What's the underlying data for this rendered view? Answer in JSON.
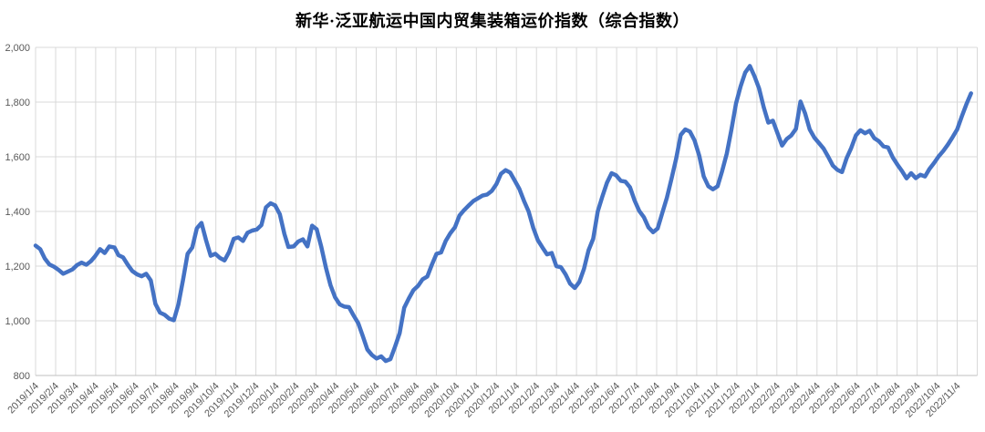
{
  "title": "新华·泛亚航运中国内贸集装箱运价指数（综合指数）",
  "colors": {
    "line": "#4472C4",
    "grid": "#D9D9D9",
    "axis": "#BFBFBF",
    "tick_text": "#595959",
    "title_text": "#000000",
    "background": "#FFFFFF"
  },
  "y_axis": {
    "min": 800,
    "max": 2000,
    "step": 200,
    "tick_labels": [
      "800",
      "1,000",
      "1,200",
      "1,400",
      "1,600",
      "1,800",
      "2,000"
    ]
  },
  "x_axis": {
    "tick_labels": [
      "2019/1/4",
      "2019/2/4",
      "2019/3/4",
      "2019/4/4",
      "2019/5/4",
      "2019/6/4",
      "2019/7/4",
      "2019/8/4",
      "2019/9/4",
      "2019/10/4",
      "2019/11/4",
      "2019/12/4",
      "2020/1/4",
      "2020/2/4",
      "2020/3/4",
      "2020/4/4",
      "2020/5/4",
      "2020/6/4",
      "2020/7/4",
      "2020/8/4",
      "2020/9/4",
      "2020/10/4",
      "2020/11/4",
      "2020/12/4",
      "2021/1/4",
      "2021/2/4",
      "2021/3/4",
      "2021/4/4",
      "2021/5/4",
      "2021/6/4",
      "2021/7/4",
      "2021/8/4",
      "2021/9/4",
      "2021/10/4",
      "2021/11/4",
      "2021/12/4",
      "2022/1/4",
      "2022/2/4",
      "2022/3/4",
      "2022/4/4",
      "2022/5/4",
      "2022/6/4",
      "2022/7/4",
      "2022/8/4",
      "2022/9/4",
      "2022/10/4",
      "2022/11/4"
    ]
  },
  "chart_data": {
    "type": "line",
    "title": "新华·泛亚航运中国内贸集装箱运价指数（综合指数）",
    "xlabel": "",
    "ylabel": "",
    "ylim": [
      800,
      2000
    ],
    "grid": true,
    "legend": false,
    "line_color": "#4472C4",
    "points": [
      [
        "2019/1/4",
        1275
      ],
      [
        "2019/1/11",
        1262
      ],
      [
        "2019/1/18",
        1228
      ],
      [
        "2019/1/25",
        1206
      ],
      [
        "2019/2/1",
        1198
      ],
      [
        "2019/2/8",
        1186
      ],
      [
        "2019/2/15",
        1172
      ],
      [
        "2019/2/22",
        1180
      ],
      [
        "2019/3/1",
        1188
      ],
      [
        "2019/3/8",
        1204
      ],
      [
        "2019/3/15",
        1213
      ],
      [
        "2019/3/22",
        1205
      ],
      [
        "2019/3/29",
        1218
      ],
      [
        "2019/4/4",
        1235
      ],
      [
        "2019/4/12",
        1262
      ],
      [
        "2019/4/19",
        1248
      ],
      [
        "2019/4/26",
        1272
      ],
      [
        "2019/5/4",
        1268
      ],
      [
        "2019/5/10",
        1240
      ],
      [
        "2019/5/17",
        1232
      ],
      [
        "2019/5/24",
        1205
      ],
      [
        "2019/5/31",
        1182
      ],
      [
        "2019/6/7",
        1170
      ],
      [
        "2019/6/14",
        1163
      ],
      [
        "2019/6/21",
        1172
      ],
      [
        "2019/6/28",
        1148
      ],
      [
        "2019/7/5",
        1062
      ],
      [
        "2019/7/12",
        1030
      ],
      [
        "2019/7/19",
        1022
      ],
      [
        "2019/7/26",
        1008
      ],
      [
        "2019/8/2",
        1002
      ],
      [
        "2019/8/9",
        1060
      ],
      [
        "2019/8/16",
        1150
      ],
      [
        "2019/8/23",
        1245
      ],
      [
        "2019/8/30",
        1268
      ],
      [
        "2019/9/6",
        1338
      ],
      [
        "2019/9/13",
        1358
      ],
      [
        "2019/9/20",
        1295
      ],
      [
        "2019/9/27",
        1238
      ],
      [
        "2019/10/4",
        1245
      ],
      [
        "2019/10/11",
        1230
      ],
      [
        "2019/10/18",
        1221
      ],
      [
        "2019/10/25",
        1252
      ],
      [
        "2019/11/1",
        1300
      ],
      [
        "2019/11/8",
        1305
      ],
      [
        "2019/11/15",
        1292
      ],
      [
        "2019/11/22",
        1322
      ],
      [
        "2019/11/29",
        1330
      ],
      [
        "2019/12/6",
        1334
      ],
      [
        "2019/12/13",
        1350
      ],
      [
        "2019/12/20",
        1415
      ],
      [
        "2019/12/27",
        1430
      ],
      [
        "2020/1/3",
        1422
      ],
      [
        "2020/1/10",
        1390
      ],
      [
        "2020/1/17",
        1318
      ],
      [
        "2020/1/23",
        1270
      ],
      [
        "2020/1/31",
        1272
      ],
      [
        "2020/2/7",
        1290
      ],
      [
        "2020/2/14",
        1298
      ],
      [
        "2020/2/21",
        1272
      ],
      [
        "2020/2/28",
        1348
      ],
      [
        "2020/3/6",
        1335
      ],
      [
        "2020/3/13",
        1270
      ],
      [
        "2020/3/20",
        1195
      ],
      [
        "2020/3/27",
        1130
      ],
      [
        "2020/4/3",
        1086
      ],
      [
        "2020/4/10",
        1060
      ],
      [
        "2020/4/17",
        1052
      ],
      [
        "2020/4/24",
        1050
      ],
      [
        "2020/5/1",
        1020
      ],
      [
        "2020/5/8",
        992
      ],
      [
        "2020/5/15",
        945
      ],
      [
        "2020/5/22",
        895
      ],
      [
        "2020/5/29",
        875
      ],
      [
        "2020/6/5",
        862
      ],
      [
        "2020/6/12",
        870
      ],
      [
        "2020/6/19",
        853
      ],
      [
        "2020/6/26",
        860
      ],
      [
        "2020/7/3",
        905
      ],
      [
        "2020/7/10",
        955
      ],
      [
        "2020/7/17",
        1048
      ],
      [
        "2020/7/24",
        1082
      ],
      [
        "2020/7/31",
        1112
      ],
      [
        "2020/8/7",
        1128
      ],
      [
        "2020/8/14",
        1152
      ],
      [
        "2020/8/21",
        1162
      ],
      [
        "2020/8/28",
        1205
      ],
      [
        "2020/9/4",
        1245
      ],
      [
        "2020/9/11",
        1250
      ],
      [
        "2020/9/18",
        1292
      ],
      [
        "2020/9/25",
        1320
      ],
      [
        "2020/10/2",
        1342
      ],
      [
        "2020/10/9",
        1385
      ],
      [
        "2020/10/16",
        1405
      ],
      [
        "2020/10/23",
        1422
      ],
      [
        "2020/10/30",
        1438
      ],
      [
        "2020/11/6",
        1448
      ],
      [
        "2020/11/13",
        1458
      ],
      [
        "2020/11/20",
        1462
      ],
      [
        "2020/11/27",
        1475
      ],
      [
        "2020/12/4",
        1500
      ],
      [
        "2020/12/11",
        1538
      ],
      [
        "2020/12/18",
        1551
      ],
      [
        "2020/12/25",
        1542
      ],
      [
        "2021/1/1",
        1512
      ],
      [
        "2021/1/8",
        1482
      ],
      [
        "2021/1/15",
        1438
      ],
      [
        "2021/1/22",
        1400
      ],
      [
        "2021/1/29",
        1340
      ],
      [
        "2021/2/5",
        1295
      ],
      [
        "2021/2/12",
        1268
      ],
      [
        "2021/2/19",
        1243
      ],
      [
        "2021/2/26",
        1248
      ],
      [
        "2021/3/5",
        1200
      ],
      [
        "2021/3/12",
        1196
      ],
      [
        "2021/3/19",
        1170
      ],
      [
        "2021/3/26",
        1136
      ],
      [
        "2021/4/2",
        1120
      ],
      [
        "2021/4/9",
        1142
      ],
      [
        "2021/4/16",
        1190
      ],
      [
        "2021/4/23",
        1258
      ],
      [
        "2021/4/30",
        1300
      ],
      [
        "2021/5/7",
        1400
      ],
      [
        "2021/5/14",
        1455
      ],
      [
        "2021/5/21",
        1505
      ],
      [
        "2021/5/28",
        1540
      ],
      [
        "2021/6/4",
        1532
      ],
      [
        "2021/6/11",
        1512
      ],
      [
        "2021/6/18",
        1509
      ],
      [
        "2021/6/25",
        1488
      ],
      [
        "2021/7/2",
        1440
      ],
      [
        "2021/7/9",
        1402
      ],
      [
        "2021/7/16",
        1379
      ],
      [
        "2021/7/23",
        1342
      ],
      [
        "2021/7/30",
        1324
      ],
      [
        "2021/8/6",
        1338
      ],
      [
        "2021/8/13",
        1395
      ],
      [
        "2021/8/20",
        1450
      ],
      [
        "2021/8/27",
        1520
      ],
      [
        "2021/9/3",
        1592
      ],
      [
        "2021/9/10",
        1680
      ],
      [
        "2021/9/17",
        1700
      ],
      [
        "2021/9/24",
        1692
      ],
      [
        "2021/10/1",
        1660
      ],
      [
        "2021/10/8",
        1605
      ],
      [
        "2021/10/15",
        1528
      ],
      [
        "2021/10/22",
        1492
      ],
      [
        "2021/10/29",
        1481
      ],
      [
        "2021/11/5",
        1492
      ],
      [
        "2021/11/12",
        1548
      ],
      [
        "2021/11/19",
        1612
      ],
      [
        "2021/11/26",
        1700
      ],
      [
        "2021/12/3",
        1795
      ],
      [
        "2021/12/10",
        1858
      ],
      [
        "2021/12/17",
        1908
      ],
      [
        "2021/12/24",
        1932
      ],
      [
        "2021/12/31",
        1895
      ],
      [
        "2022/1/7",
        1850
      ],
      [
        "2022/1/14",
        1782
      ],
      [
        "2022/1/21",
        1725
      ],
      [
        "2022/1/28",
        1732
      ],
      [
        "2022/2/4",
        1686
      ],
      [
        "2022/2/11",
        1641
      ],
      [
        "2022/2/18",
        1665
      ],
      [
        "2022/2/25",
        1678
      ],
      [
        "2022/3/4",
        1702
      ],
      [
        "2022/3/11",
        1802
      ],
      [
        "2022/3/18",
        1758
      ],
      [
        "2022/3/25",
        1700
      ],
      [
        "2022/4/1",
        1670
      ],
      [
        "2022/4/8",
        1650
      ],
      [
        "2022/4/15",
        1630
      ],
      [
        "2022/4/22",
        1600
      ],
      [
        "2022/4/29",
        1568
      ],
      [
        "2022/5/6",
        1552
      ],
      [
        "2022/5/13",
        1544
      ],
      [
        "2022/5/20",
        1595
      ],
      [
        "2022/5/27",
        1632
      ],
      [
        "2022/6/3",
        1678
      ],
      [
        "2022/6/10",
        1697
      ],
      [
        "2022/6/17",
        1686
      ],
      [
        "2022/6/24",
        1695
      ],
      [
        "2022/7/1",
        1668
      ],
      [
        "2022/7/8",
        1657
      ],
      [
        "2022/7/15",
        1638
      ],
      [
        "2022/7/22",
        1634
      ],
      [
        "2022/7/29",
        1598
      ],
      [
        "2022/8/5",
        1572
      ],
      [
        "2022/8/12",
        1548
      ],
      [
        "2022/8/19",
        1521
      ],
      [
        "2022/8/26",
        1540
      ],
      [
        "2022/9/2",
        1522
      ],
      [
        "2022/9/9",
        1534
      ],
      [
        "2022/9/16",
        1528
      ],
      [
        "2022/9/23",
        1556
      ],
      [
        "2022/9/30",
        1578
      ],
      [
        "2022/10/7",
        1602
      ],
      [
        "2022/10/14",
        1622
      ],
      [
        "2022/10/21",
        1645
      ],
      [
        "2022/10/28",
        1672
      ],
      [
        "2022/11/4",
        1700
      ],
      [
        "2022/11/11",
        1748
      ],
      [
        "2022/11/18",
        1792
      ],
      [
        "2022/11/25",
        1832
      ]
    ]
  }
}
